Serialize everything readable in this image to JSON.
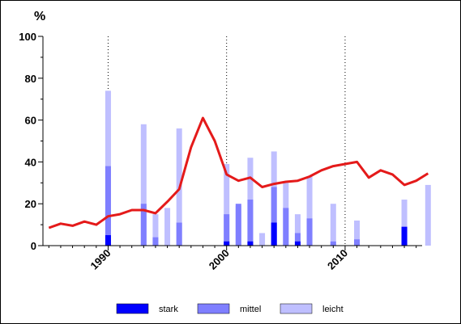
{
  "chart_data": {
    "type": "bar",
    "unit_label": "%",
    "xlim": [
      1984.5,
      2016.5
    ],
    "ylim": [
      0,
      100
    ],
    "y_ticks": [
      "0",
      "20",
      "40",
      "60",
      "80",
      "100"
    ],
    "x_ticks": [
      "1990",
      "2000",
      "2010"
    ],
    "grid": "vertical dotted lines at 1990, 2000, 2010",
    "legend_position": "bottom",
    "categories": [
      1990,
      1993,
      1994,
      1995,
      1996,
      2000,
      2001,
      2002,
      2003,
      2004,
      2005,
      2006,
      2007,
      2009,
      2011,
      2015,
      2017
    ],
    "series": [
      {
        "name": "stark",
        "color": "#0000ff",
        "values": [
          5,
          0,
          0,
          0,
          0,
          2,
          0,
          2,
          0,
          11,
          0,
          2,
          0,
          0,
          0,
          9,
          0
        ]
      },
      {
        "name": "mittel",
        "color": "#7f7fff",
        "values": [
          38,
          20,
          4,
          0,
          11,
          15,
          20,
          22,
          0,
          28,
          18,
          6,
          13,
          2,
          3,
          9,
          0
        ]
      },
      {
        "name": "leicht",
        "color": "#bfbfff",
        "values": [
          74,
          58,
          15,
          18,
          56,
          39,
          19,
          42,
          6,
          45,
          30,
          15,
          33,
          20,
          12,
          22,
          29
        ]
      }
    ],
    "line": {
      "color": "#e41a1a",
      "x": [
        1985,
        1986,
        1987,
        1988,
        1989,
        1990,
        1991,
        1992,
        1993,
        1994,
        1995,
        1996,
        1997,
        1998,
        1999,
        2000,
        2001,
        2002,
        2003,
        2004,
        2005,
        2006,
        2007,
        2008,
        2009,
        2010,
        2011,
        2012,
        2013,
        2014,
        2015,
        2016,
        2017
      ],
      "y": [
        8.5,
        10.5,
        9.5,
        11.5,
        10,
        14,
        15,
        17,
        17,
        15.5,
        21,
        27,
        47,
        61,
        50,
        34,
        31,
        32.5,
        28,
        29.5,
        30.5,
        31,
        33,
        36,
        38,
        39,
        40,
        32.5,
        36,
        34,
        29,
        31,
        34.5
      ]
    }
  }
}
